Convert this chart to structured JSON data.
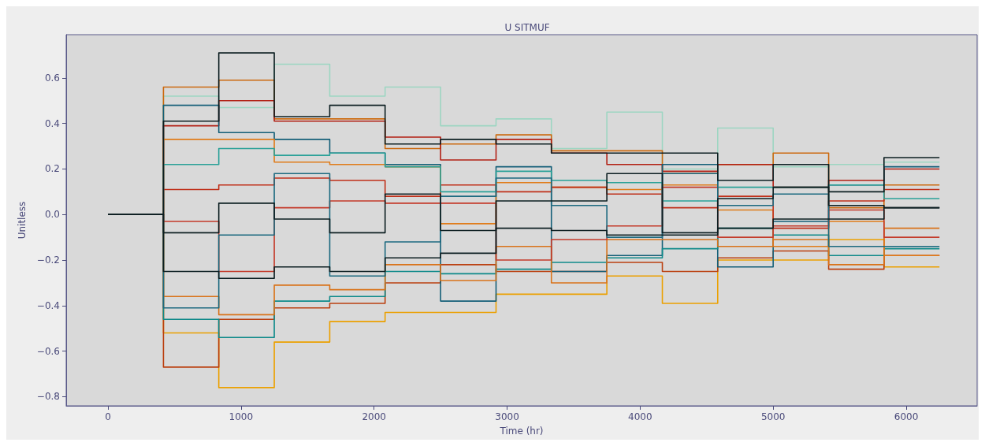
{
  "chart_data": {
    "type": "step",
    "title": "U SITMUF",
    "xlabel": "Time (hr)",
    "ylabel": "Unitless",
    "x": [
      0,
      417,
      833,
      1250,
      1667,
      2083,
      2500,
      2917,
      3333,
      3750,
      4167,
      4583,
      5000,
      5417,
      5833,
      6250
    ],
    "series": [
      {
        "color": "#9dd6c2",
        "values": [
          0,
          0.52,
          0.47,
          0.66,
          0.52,
          0.56,
          0.39,
          0.42,
          0.29,
          0.45,
          0.2,
          0.38,
          0.21,
          0.22,
          0.23,
          0.23
        ]
      },
      {
        "color": "#cc6a10",
        "values": [
          0,
          0.56,
          0.59,
          0.42,
          0.42,
          0.29,
          0.31,
          0.35,
          0.28,
          0.28,
          0.18,
          0.22,
          0.27,
          0.03,
          0.13,
          0.13
        ]
      },
      {
        "color": "#b22014",
        "values": [
          0,
          0.39,
          0.5,
          0.41,
          0.41,
          0.34,
          0.24,
          0.33,
          0.27,
          0.22,
          0.19,
          0.22,
          0.12,
          0.15,
          0.2,
          0.2
        ]
      },
      {
        "color": "#eba000",
        "values": [
          0,
          -0.52,
          -0.76,
          -0.56,
          -0.47,
          -0.43,
          -0.43,
          -0.35,
          -0.35,
          -0.27,
          -0.39,
          -0.2,
          -0.2,
          -0.11,
          -0.23,
          -0.23
        ]
      },
      {
        "color": "#bb4010",
        "values": [
          0,
          -0.67,
          -0.46,
          -0.41,
          -0.39,
          -0.3,
          -0.22,
          -0.25,
          -0.25,
          -0.21,
          -0.25,
          -0.19,
          -0.16,
          -0.24,
          -0.18,
          -0.18
        ]
      },
      {
        "color": "#145f78",
        "values": [
          0,
          0.48,
          0.36,
          0.33,
          0.27,
          0.22,
          -0.38,
          0.21,
          -0.25,
          -0.18,
          0.22,
          -0.23,
          -0.03,
          0.13,
          0.21,
          0.21
        ]
      },
      {
        "color": "#0f8a8a",
        "values": [
          0,
          -0.46,
          -0.54,
          -0.38,
          -0.36,
          -0.25,
          -0.26,
          -0.24,
          -0.21,
          -0.19,
          -0.15,
          -0.06,
          -0.09,
          -0.18,
          -0.15,
          -0.15
        ]
      },
      {
        "color": "#e07c1a",
        "values": [
          0,
          0.33,
          0.33,
          0.23,
          0.22,
          0.21,
          -0.04,
          0.14,
          0.12,
          0.11,
          0.13,
          0.02,
          -0.14,
          -0.03,
          -0.18,
          -0.18
        ]
      },
      {
        "color": "#c0301a",
        "values": [
          0,
          0.11,
          0.13,
          0.16,
          0.15,
          0.08,
          0.13,
          0.1,
          0.12,
          0.09,
          0.03,
          0.08,
          -0.06,
          0.06,
          0.11,
          0.11
        ]
      },
      {
        "color": "#d9731a",
        "values": [
          0,
          -0.36,
          -0.44,
          -0.31,
          -0.33,
          -0.22,
          -0.29,
          -0.14,
          -0.3,
          -0.11,
          -0.11,
          -0.14,
          -0.11,
          -0.22,
          -0.06,
          -0.06
        ]
      },
      {
        "color": "#2aa198",
        "values": [
          0,
          0.22,
          0.29,
          0.26,
          0.27,
          0.21,
          0.1,
          0.19,
          0.15,
          0.14,
          0.06,
          0.12,
          0.12,
          0.13,
          0.07,
          0.07
        ]
      },
      {
        "color": "#c43a2a",
        "values": [
          0,
          -0.03,
          -0.25,
          0.03,
          0.06,
          0.05,
          0.05,
          -0.2,
          -0.11,
          -0.05,
          0.12,
          -0.1,
          -0.05,
          0.02,
          -0.1,
          -0.1
        ]
      },
      {
        "color": "#1d6a80",
        "values": [
          0,
          -0.41,
          -0.09,
          0.18,
          -0.27,
          -0.12,
          0.08,
          0.16,
          0.04,
          -0.1,
          0.18,
          0.04,
          0.09,
          -0.14,
          -0.14,
          -0.14
        ]
      },
      {
        "color": "#0d1f22",
        "values": [
          0,
          -0.25,
          -0.28,
          -0.23,
          -0.25,
          -0.19,
          -0.17,
          -0.06,
          -0.07,
          -0.09,
          -0.09,
          -0.06,
          -0.02,
          -0.02,
          0.03,
          0.03
        ]
      },
      {
        "color": "#0d1f22",
        "values": [
          0,
          -0.08,
          0.05,
          -0.02,
          -0.08,
          0.09,
          -0.07,
          0.06,
          0.06,
          0.18,
          -0.08,
          0.07,
          0.12,
          0.04,
          0.03,
          0.03
        ]
      },
      {
        "color": "#0d1f22",
        "values": [
          0,
          0.41,
          0.71,
          0.43,
          0.48,
          0.31,
          0.33,
          0.31,
          0.27,
          0.27,
          0.27,
          0.15,
          0.22,
          0.1,
          0.25,
          0.25
        ]
      }
    ],
    "xlim": [
      -314,
      6533
    ],
    "xticks": [
      0,
      1000,
      2000,
      3000,
      4000,
      5000,
      6000
    ],
    "ylim": [
      -0.84,
      0.79
    ],
    "yticks": [
      {
        "value": -0.8,
        "label": "−0.8"
      },
      {
        "value": -0.6,
        "label": "−0.6"
      },
      {
        "value": -0.4,
        "label": "−0.4"
      },
      {
        "value": -0.2,
        "label": "−0.2"
      },
      {
        "value": 0,
        "label": "0.0"
      },
      0.2,
      0.4,
      0.6
    ],
    "grid": false,
    "marker": "none",
    "line_style": "solid"
  }
}
